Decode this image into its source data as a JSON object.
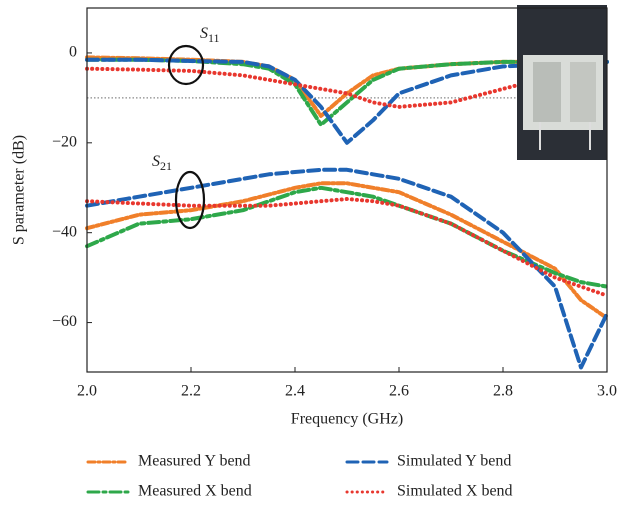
{
  "chart_data": {
    "type": "line",
    "x_label": "Frequency (GHz)",
    "y_label": "S parameter (dB)",
    "annotations": [
      {
        "text": "S",
        "sub": "11"
      },
      {
        "text": "S",
        "sub": "21"
      }
    ],
    "reference_line": -10,
    "x": [
      2.0,
      2.1,
      2.2,
      2.3,
      2.35,
      2.4,
      2.45,
      2.5,
      2.55,
      2.6,
      2.7,
      2.8,
      2.9,
      2.95,
      3.0
    ],
    "series": [
      {
        "name": "Measured Y bend",
        "color": "#f07f2a",
        "style": "dash-dot",
        "s11": [
          -1,
          -1.2,
          -1.5,
          -2,
          -3,
          -6,
          -14,
          -9,
          -5,
          -3.5,
          -2.5,
          -2,
          -2,
          -2,
          -2
        ],
        "s21": [
          -39,
          -36,
          -35,
          -33,
          -31.5,
          -30,
          -29,
          -29,
          -30,
          -31,
          -36,
          -42,
          -48,
          -55,
          -59
        ]
      },
      {
        "name": "Measured X bend",
        "color": "#2ea84a",
        "style": "long-dash-dot",
        "s11": [
          -1.5,
          -1.5,
          -1.8,
          -2.5,
          -3.5,
          -7,
          -16,
          -11,
          -6,
          -3.5,
          -2.5,
          -2,
          -2,
          -2,
          -2
        ],
        "s21": [
          -43,
          -38,
          -37,
          -35,
          -33,
          -31,
          -30,
          -31,
          -32,
          -34,
          -38,
          -44,
          -49,
          -51,
          -52
        ]
      },
      {
        "name": "Simulated Y bend",
        "color": "#1f63b5",
        "style": "dashed",
        "s11": [
          -1.5,
          -1.5,
          -1.8,
          -2,
          -3,
          -6,
          -12,
          -20,
          -15,
          -9,
          -5,
          -3,
          -2.5,
          -2.3,
          -2
        ],
        "s21": [
          -34,
          -32,
          -30,
          -28,
          -27,
          -26.5,
          -26,
          -26,
          -27,
          -28,
          -32,
          -40,
          -52,
          -70,
          -58
        ]
      },
      {
        "name": "Simulated X bend",
        "color": "#e8372e",
        "style": "dotted",
        "s11": [
          -3.5,
          -3.7,
          -4,
          -5,
          -6,
          -7,
          -8,
          -9,
          -11,
          -12,
          -11,
          -8,
          -5,
          -4.5,
          -4
        ],
        "s21": [
          -33,
          -33.5,
          -34,
          -34,
          -34,
          -33.5,
          -33,
          -32.5,
          -33,
          -34,
          -38,
          -44,
          -50,
          -52,
          -54
        ]
      }
    ],
    "xlim": [
      2.0,
      3.0
    ],
    "xticks": [
      {
        "value": 2.0,
        "label": "2.0"
      },
      {
        "value": 2.2,
        "label": "2.2"
      },
      {
        "value": 2.4,
        "label": "2.4"
      },
      {
        "value": 2.6,
        "label": "2.6"
      },
      {
        "value": 2.8,
        "label": "2.8"
      },
      {
        "value": 3.0,
        "label": "3.0"
      }
    ],
    "ylim": [
      -71,
      10
    ],
    "yticks": [
      0,
      {
        "value": -20,
        "label": "−20"
      },
      {
        "value": -40,
        "label": "−40"
      },
      {
        "value": -60,
        "label": "−60"
      }
    ]
  }
}
